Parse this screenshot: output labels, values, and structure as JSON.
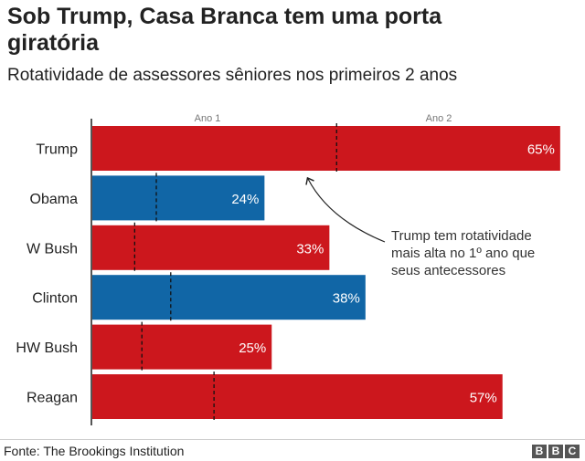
{
  "title": "Sob Trump, Casa Branca tem uma porta giratória",
  "subtitle": "Rotatividade de assessores sêniores nos primeiros 2 anos",
  "source": "Fonte: The Brookings Institution",
  "logo": "BBC",
  "chart_data": {
    "type": "bar",
    "orientation": "horizontal",
    "column_labels": [
      "Ano 1",
      "Ano 2"
    ],
    "categories": [
      "Trump",
      "Obama",
      "W Bush",
      "Clinton",
      "HW Bush",
      "Reagan"
    ],
    "values": [
      65,
      24,
      33,
      38,
      25,
      57
    ],
    "value_labels": [
      "65%",
      "24%",
      "33%",
      "38%",
      "25%",
      "57%"
    ],
    "year1_marker_values": [
      34,
      9,
      6,
      11,
      7,
      17
    ],
    "party_colors": [
      "#cc171d",
      "#1166a6",
      "#cc171d",
      "#1166a6",
      "#cc171d",
      "#cc171d"
    ],
    "xlim": [
      0,
      67
    ],
    "annotation": "Trump tem rotatividade mais alta no 1º ano que seus antecessores",
    "annotation_lines": [
      "Trump tem rotatividade",
      "mais alta no 1º ano que",
      "seus antecessores"
    ],
    "units": "%"
  }
}
